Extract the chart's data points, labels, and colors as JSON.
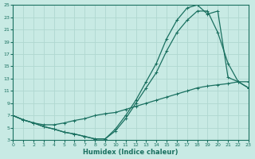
{
  "xlabel": "Humidex (Indice chaleur)",
  "xlim": [
    0,
    23
  ],
  "ylim": [
    3,
    25
  ],
  "xticks": [
    0,
    1,
    2,
    3,
    4,
    5,
    6,
    7,
    8,
    9,
    10,
    11,
    12,
    13,
    14,
    15,
    16,
    17,
    18,
    19,
    20,
    21,
    22,
    23
  ],
  "yticks": [
    3,
    5,
    7,
    9,
    11,
    13,
    15,
    17,
    19,
    21,
    23,
    25
  ],
  "bg_color": "#c8eae4",
  "grid_color": "#b0d8d0",
  "line_color": "#1a7060",
  "curve1_x": [
    0,
    1,
    2,
    3,
    4,
    5,
    6,
    7,
    8,
    9,
    10,
    11,
    12,
    13,
    14,
    15,
    16,
    17,
    18,
    19,
    20,
    21,
    22,
    23
  ],
  "curve1_y": [
    7,
    6.3,
    5.8,
    5.2,
    4.8,
    4.3,
    4.0,
    3.6,
    3.2,
    3.2,
    4.8,
    7.0,
    9.5,
    12.5,
    15.5,
    19.5,
    22.5,
    24.5,
    25.0,
    23.5,
    24.0,
    13.2,
    12.5,
    11.5
  ],
  "curve2_x": [
    0,
    1,
    2,
    3,
    4,
    5,
    6,
    7,
    8,
    9,
    10,
    11,
    12,
    13,
    14,
    15,
    16,
    17,
    18,
    19,
    20,
    21,
    22,
    23
  ],
  "curve2_y": [
    7,
    6.3,
    5.8,
    5.2,
    4.8,
    4.3,
    4.0,
    3.6,
    3.2,
    3.2,
    4.5,
    6.5,
    9.0,
    11.5,
    14.0,
    17.5,
    20.5,
    22.5,
    24.0,
    24.0,
    20.5,
    15.5,
    12.5,
    11.5
  ],
  "curve3_x": [
    0,
    1,
    2,
    3,
    4,
    5,
    6,
    7,
    8,
    9,
    10,
    11,
    12,
    13,
    14,
    15,
    16,
    17,
    18,
    19,
    20,
    21,
    22,
    23
  ],
  "curve3_y": [
    7,
    6.3,
    5.8,
    5.5,
    5.5,
    5.8,
    6.2,
    6.5,
    7.0,
    7.3,
    7.5,
    8.0,
    8.5,
    9.0,
    9.5,
    10.0,
    10.5,
    11.0,
    11.5,
    11.8,
    12.0,
    12.2,
    12.5,
    12.5
  ]
}
